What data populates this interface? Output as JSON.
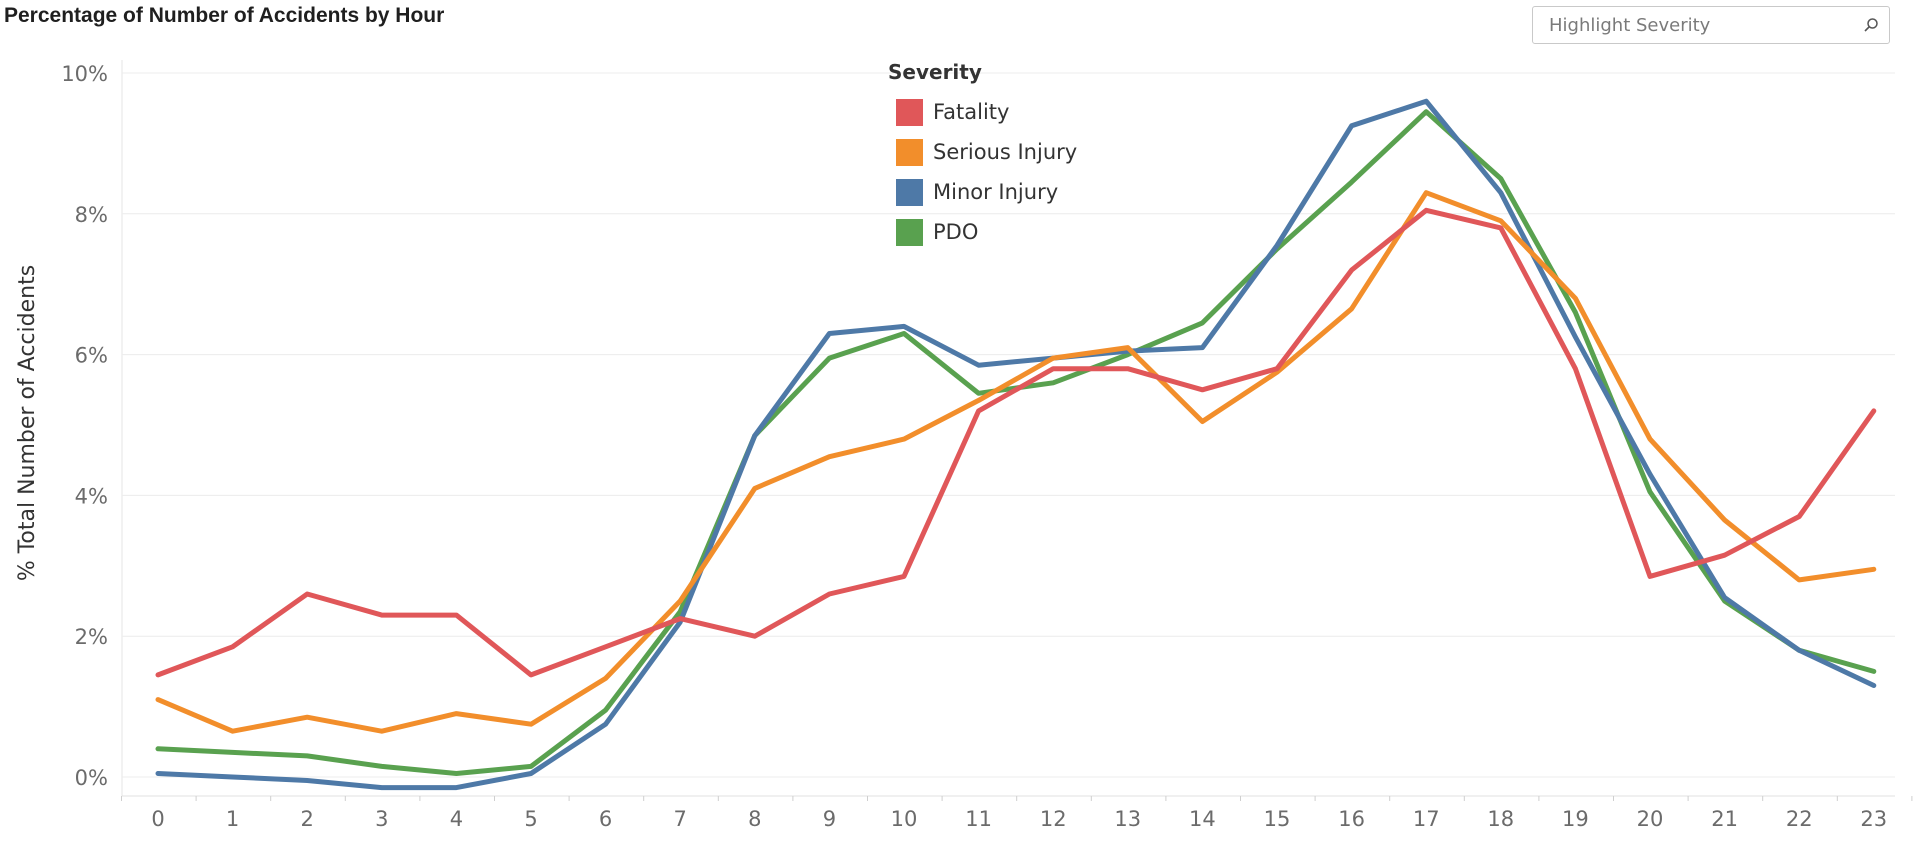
{
  "page_title": "Percentage of Number of Accidents by Hour",
  "search": {
    "placeholder": "Highlight Severity",
    "icon": "search-icon"
  },
  "legend": {
    "title": "Severity",
    "items": [
      {
        "label": "Fatality",
        "color": "#e05759"
      },
      {
        "label": "Serious Injury",
        "color": "#f28e2b"
      },
      {
        "label": "Minor Injury",
        "color": "#4e79a7"
      },
      {
        "label": "PDO",
        "color": "#59a14f"
      }
    ]
  },
  "chart_data": {
    "type": "line",
    "title": "Percentage of Number of Accidents by Hour",
    "xlabel": "",
    "ylabel": "% Total Number of Accidents",
    "x": [
      0,
      1,
      2,
      3,
      4,
      5,
      6,
      7,
      8,
      9,
      10,
      11,
      12,
      13,
      14,
      15,
      16,
      17,
      18,
      19,
      20,
      21,
      22,
      23
    ],
    "ylim": [
      0,
      10
    ],
    "yticks": [
      "0%",
      "2%",
      "4%",
      "6%",
      "8%",
      "10%"
    ],
    "grid": true,
    "legend_position": "top-center",
    "series": [
      {
        "name": "Fatality",
        "color": "#e05759",
        "values": [
          1.45,
          1.85,
          2.6,
          2.3,
          2.3,
          1.45,
          1.85,
          2.25,
          2.0,
          2.6,
          2.85,
          5.2,
          5.8,
          5.8,
          5.5,
          5.8,
          7.2,
          8.05,
          7.8,
          5.8,
          2.85,
          3.15,
          3.7,
          5.2
        ]
      },
      {
        "name": "Serious Injury",
        "color": "#f28e2b",
        "values": [
          1.1,
          0.65,
          0.85,
          0.65,
          0.9,
          0.75,
          1.4,
          2.5,
          4.1,
          4.55,
          4.8,
          5.35,
          5.95,
          6.1,
          5.05,
          5.75,
          6.65,
          8.3,
          7.9,
          6.8,
          4.8,
          3.65,
          2.8,
          2.95
        ]
      },
      {
        "name": "Minor Injury",
        "color": "#4e79a7",
        "values": [
          0.05,
          0.0,
          -0.05,
          -0.15,
          -0.15,
          0.05,
          0.75,
          2.2,
          4.85,
          6.3,
          6.4,
          5.85,
          5.95,
          6.05,
          6.1,
          7.55,
          9.25,
          9.6,
          8.3,
          6.25,
          4.3,
          2.55,
          1.8,
          1.3
        ]
      },
      {
        "name": "PDO",
        "color": "#59a14f",
        "values": [
          0.4,
          0.35,
          0.3,
          0.15,
          0.05,
          0.15,
          0.95,
          2.35,
          4.85,
          5.95,
          6.3,
          5.45,
          5.6,
          6.0,
          6.45,
          7.5,
          8.45,
          9.45,
          8.5,
          6.6,
          4.05,
          2.5,
          1.8,
          1.5
        ]
      }
    ]
  }
}
